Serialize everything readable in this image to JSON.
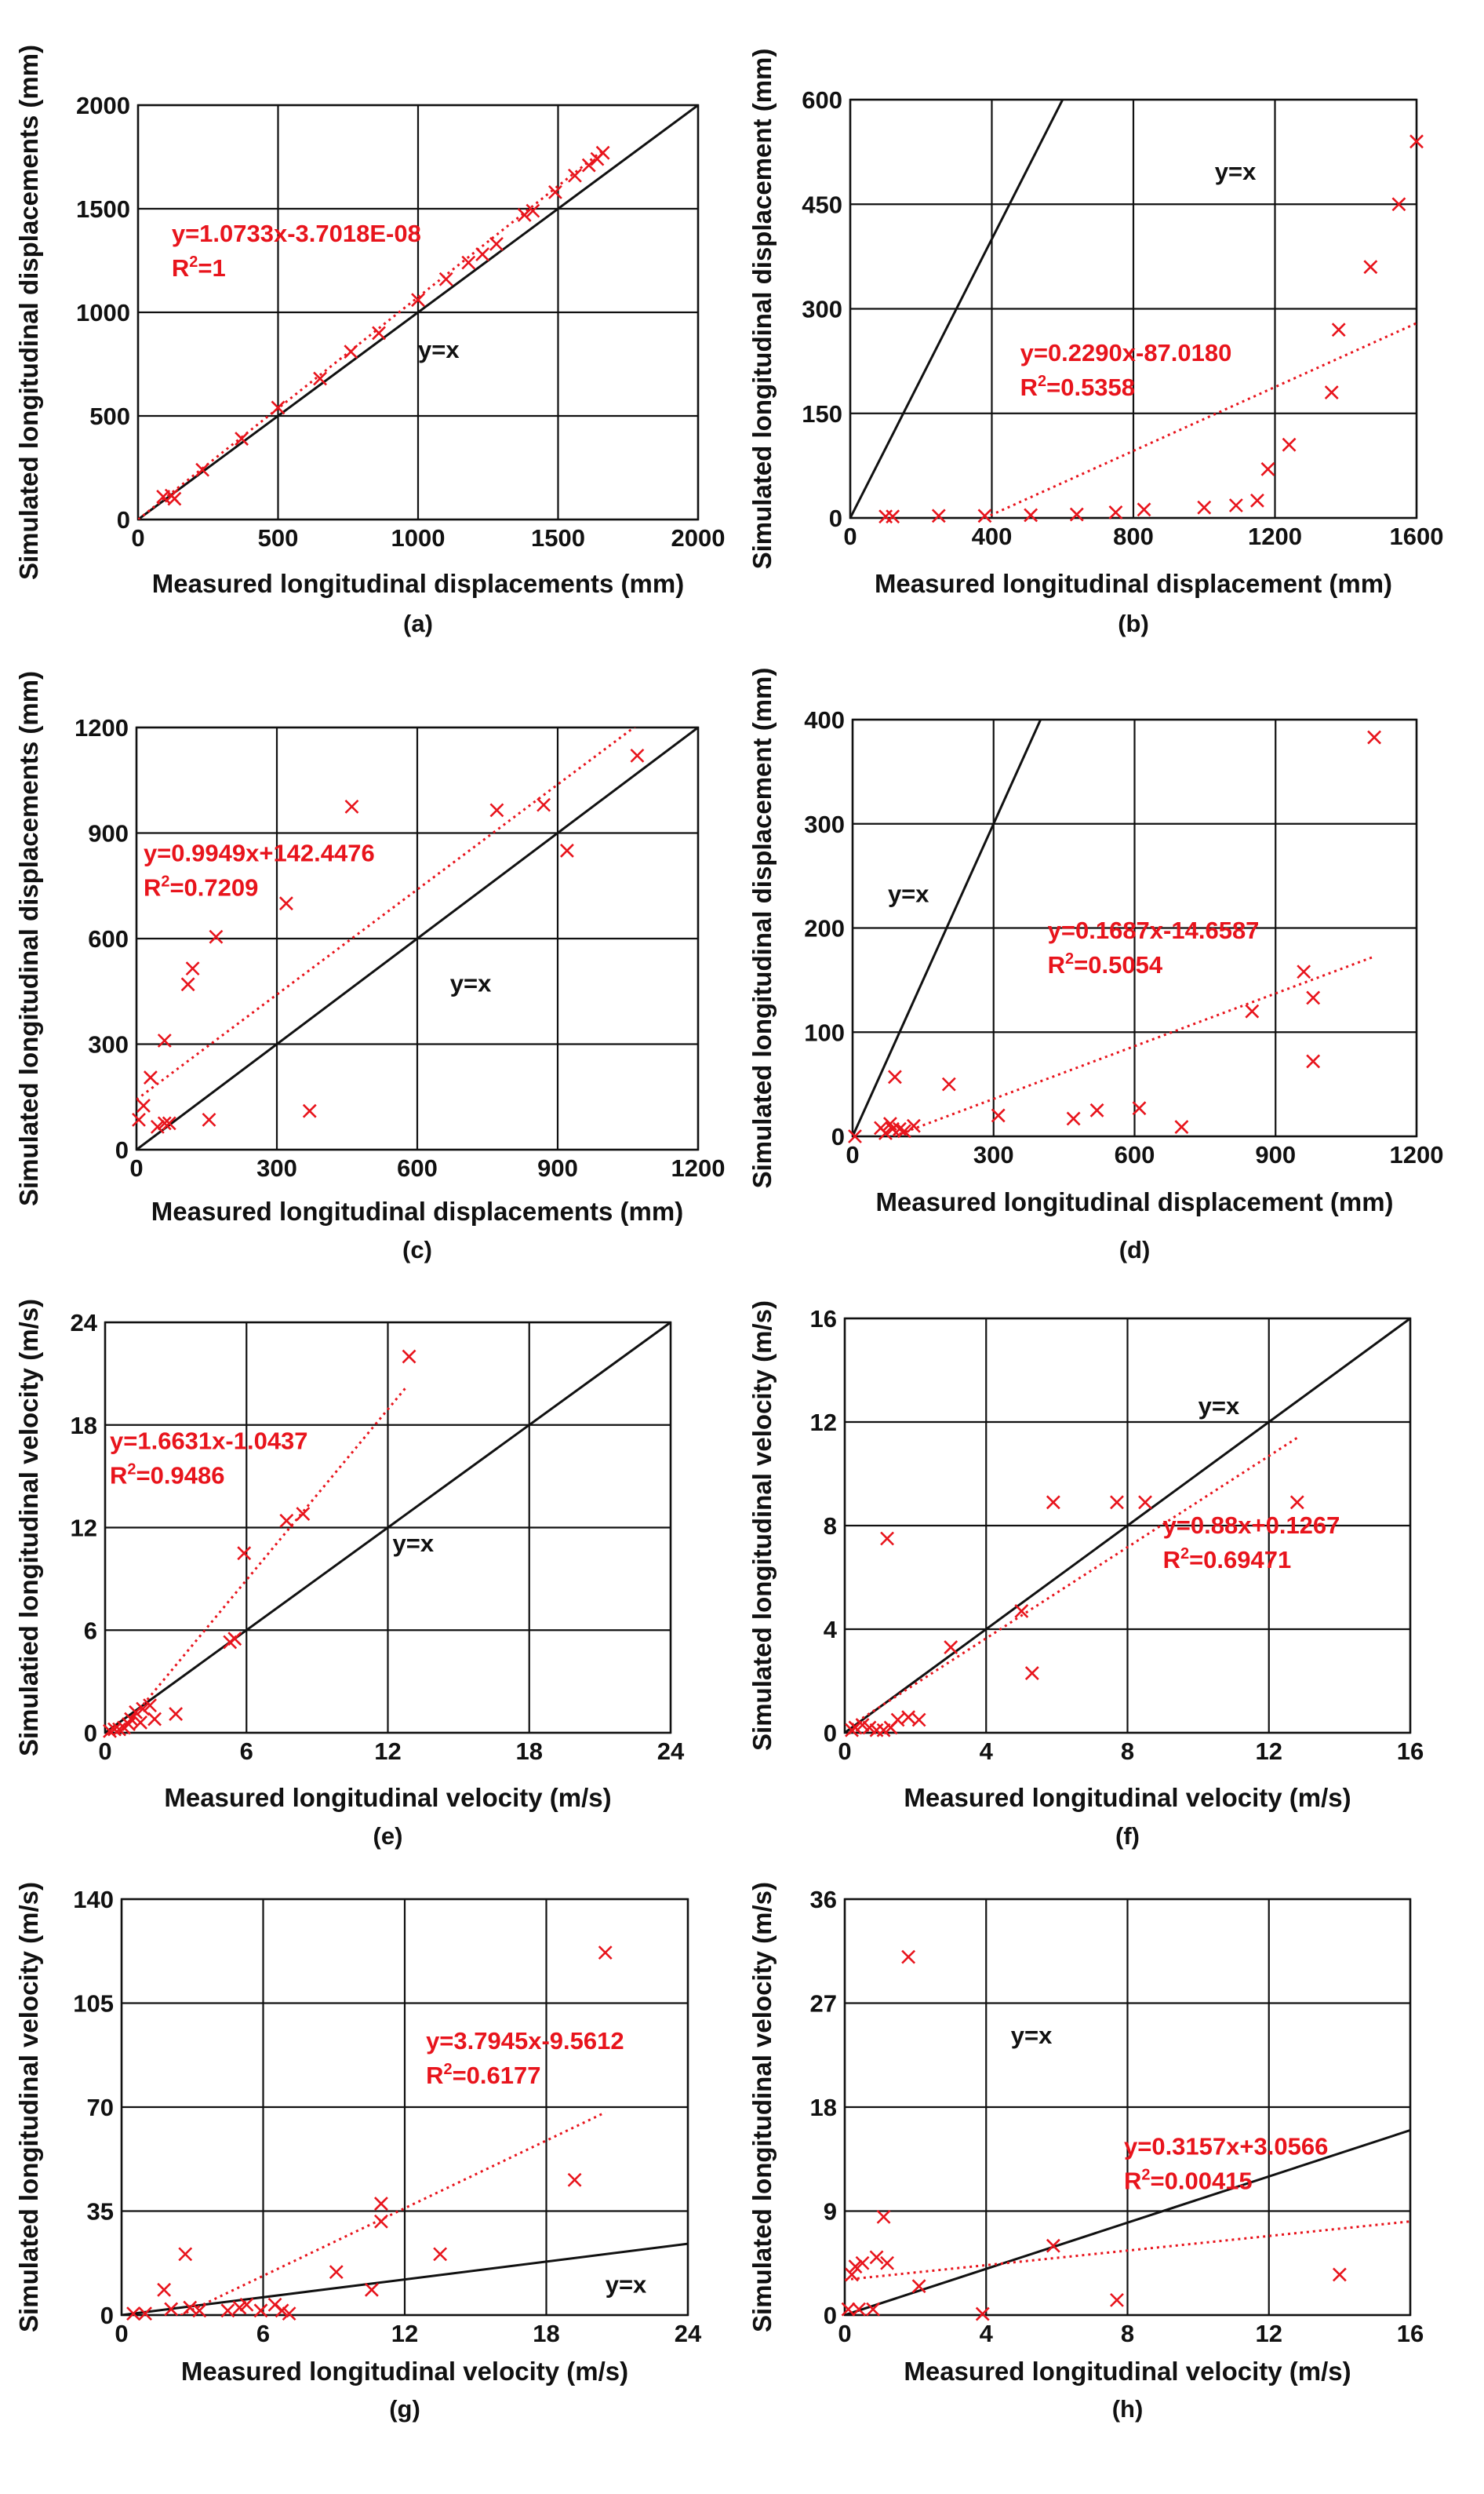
{
  "chart_data": [
    {
      "id": "a",
      "panel_label": "(a)",
      "type": "scatter",
      "xlabel": "Measured longitudinal displacements (mm)",
      "ylabel": "Simulated longitudinal displacements (mm)",
      "xlim": [
        0,
        2000
      ],
      "ylim": [
        0,
        2000
      ],
      "xticks": [
        0,
        500,
        1000,
        1500,
        2000
      ],
      "yticks": [
        0,
        500,
        1000,
        1500,
        2000
      ],
      "grid": true,
      "identity_label": "y=x",
      "identity_label_at": [
        1000,
        780
      ],
      "fit": {
        "slope": 1.0733,
        "intercept": -3.7018e-08,
        "x_range": [
          0,
          1660
        ]
      },
      "fit_equation": "y=1.0733x-3.7018E-08",
      "r2_prefix": "R",
      "r2_value": "=1",
      "equation_at": [
        120,
        1340
      ],
      "points": [
        [
          90,
          110
        ],
        [
          120,
          115
        ],
        [
          130,
          100
        ],
        [
          230,
          240
        ],
        [
          370,
          390
        ],
        [
          500,
          540
        ],
        [
          650,
          680
        ],
        [
          760,
          810
        ],
        [
          860,
          900
        ],
        [
          1000,
          1060
        ],
        [
          1100,
          1160
        ],
        [
          1180,
          1240
        ],
        [
          1230,
          1280
        ],
        [
          1280,
          1330
        ],
        [
          1380,
          1470
        ],
        [
          1410,
          1490
        ],
        [
          1490,
          1580
        ],
        [
          1560,
          1660
        ],
        [
          1610,
          1710
        ],
        [
          1640,
          1740
        ],
        [
          1660,
          1770
        ]
      ]
    },
    {
      "id": "b",
      "panel_label": "(b)",
      "type": "scatter",
      "xlabel": "Measured longitudinal displacement (mm)",
      "ylabel": "Simulated longitudinal displacement (mm)",
      "xlim": [
        0,
        1600
      ],
      "ylim": [
        0,
        600
      ],
      "xticks": [
        0,
        400,
        800,
        1200,
        1600
      ],
      "yticks": [
        0,
        150,
        300,
        450,
        600
      ],
      "grid": true,
      "identity_label": "y=x",
      "identity_label_at": [
        1030,
        485
      ],
      "fit": {
        "slope": 0.229,
        "intercept": -87.018,
        "x_range": [
          380,
          1600
        ]
      },
      "fit_equation": "y=0.2290x-87.0180",
      "r2_prefix": "R",
      "r2_value": "=0.5358",
      "equation_at": [
        480,
        225
      ],
      "points": [
        [
          100,
          2
        ],
        [
          120,
          2
        ],
        [
          250,
          3
        ],
        [
          380,
          3
        ],
        [
          510,
          4
        ],
        [
          640,
          5
        ],
        [
          750,
          8
        ],
        [
          830,
          12
        ],
        [
          1000,
          15
        ],
        [
          1090,
          18
        ],
        [
          1150,
          25
        ],
        [
          1180,
          70
        ],
        [
          1240,
          105
        ],
        [
          1360,
          180
        ],
        [
          1380,
          270
        ],
        [
          1470,
          360
        ],
        [
          1550,
          450
        ],
        [
          1600,
          540
        ]
      ]
    },
    {
      "id": "c",
      "panel_label": "(c)",
      "type": "scatter",
      "xlabel": "Measured longitudinal displacements (mm)",
      "ylabel": "Simulated longitudinal displacements (mm)",
      "xlim": [
        0,
        1200
      ],
      "ylim": [
        0,
        1200
      ],
      "xticks": [
        0,
        300,
        600,
        900,
        1200
      ],
      "yticks": [
        0,
        300,
        600,
        900,
        1200
      ],
      "grid": true,
      "identity_label": "y=x",
      "identity_label_at": [
        670,
        450
      ],
      "fit": {
        "slope": 0.9949,
        "intercept": 142.4476,
        "x_range": [
          0,
          1070
        ]
      },
      "fit_equation": "y=0.9949x+142.4476",
      "r2_prefix": "R",
      "r2_value": "=0.7209",
      "equation_at": [
        15,
        820
      ],
      "points": [
        [
          5,
          85
        ],
        [
          15,
          125
        ],
        [
          30,
          205
        ],
        [
          45,
          65
        ],
        [
          60,
          310
        ],
        [
          60,
          75
        ],
        [
          70,
          75
        ],
        [
          110,
          470
        ],
        [
          120,
          515
        ],
        [
          155,
          85
        ],
        [
          170,
          605
        ],
        [
          320,
          700
        ],
        [
          370,
          110
        ],
        [
          460,
          975
        ],
        [
          770,
          965
        ],
        [
          870,
          980
        ],
        [
          920,
          850
        ],
        [
          1070,
          1120
        ]
      ]
    },
    {
      "id": "d",
      "panel_label": "(d)",
      "type": "scatter",
      "xlabel": "Measured longitudinal displacement (mm)",
      "ylabel": "Simulated longitudinal displacement (mm)",
      "xlim": [
        0,
        1200
      ],
      "ylim": [
        0,
        400
      ],
      "xticks": [
        0,
        300,
        600,
        900,
        1200
      ],
      "yticks": [
        0,
        100,
        200,
        300,
        400
      ],
      "grid": true,
      "identity_label": "y=x",
      "identity_label_at": [
        75,
        225
      ],
      "fit": {
        "slope": 0.1687,
        "intercept": -14.6587,
        "x_range": [
          87,
          1110
        ]
      },
      "fit_equation": "y=0.1687x-14.6587",
      "r2_prefix": "R",
      "r2_value": "=0.5054",
      "equation_at": [
        415,
        190
      ],
      "points": [
        [
          5,
          0
        ],
        [
          60,
          8
        ],
        [
          70,
          3
        ],
        [
          80,
          12
        ],
        [
          85,
          7
        ],
        [
          90,
          57
        ],
        [
          100,
          7
        ],
        [
          110,
          5
        ],
        [
          130,
          10
        ],
        [
          205,
          50
        ],
        [
          310,
          20
        ],
        [
          470,
          17
        ],
        [
          520,
          25
        ],
        [
          610,
          27
        ],
        [
          700,
          9
        ],
        [
          850,
          120
        ],
        [
          960,
          158
        ],
        [
          980,
          133
        ],
        [
          980,
          72
        ],
        [
          1110,
          383
        ]
      ]
    },
    {
      "id": "e",
      "panel_label": "(e)",
      "type": "scatter",
      "xlabel": "Measured longitudinal velocity (m/s)",
      "ylabel": "Simulatied longitudinal velocity (m/s)",
      "xlim": [
        0,
        24
      ],
      "ylim": [
        0,
        24
      ],
      "xticks": [
        0,
        6,
        12,
        18,
        24
      ],
      "yticks": [
        0,
        6,
        12,
        18,
        24
      ],
      "grid": true,
      "identity_label": "y=x",
      "identity_label_at": [
        12.2,
        10.6
      ],
      "fit": {
        "slope": 1.6631,
        "intercept": -1.0437,
        "x_range": [
          0.6,
          12.8
        ]
      },
      "fit_equation": "y=1.6631x-1.0437",
      "r2_prefix": "R",
      "r2_value": "=0.9486",
      "equation_at": [
        0.2,
        16.6
      ],
      "points": [
        [
          0.2,
          0.1
        ],
        [
          0.4,
          0.2
        ],
        [
          0.6,
          0.2
        ],
        [
          0.8,
          0.3
        ],
        [
          1.0,
          0.5
        ],
        [
          1.1,
          0.8
        ],
        [
          1.3,
          1.2
        ],
        [
          1.5,
          0.6
        ],
        [
          1.6,
          1.4
        ],
        [
          1.9,
          1.6
        ],
        [
          2.1,
          0.8
        ],
        [
          3.0,
          1.1
        ],
        [
          5.3,
          5.3
        ],
        [
          5.5,
          5.5
        ],
        [
          5.9,
          10.5
        ],
        [
          7.7,
          12.4
        ],
        [
          8.4,
          12.8
        ],
        [
          12.9,
          22.0
        ]
      ]
    },
    {
      "id": "f",
      "panel_label": "(f)",
      "type": "scatter",
      "xlabel": "Measured longitudinal velocity (m/s)",
      "ylabel": "Simulated longitudinal velocity (m/s)",
      "xlim": [
        0,
        16
      ],
      "ylim": [
        0,
        16
      ],
      "xticks": [
        0,
        4,
        8,
        12,
        16
      ],
      "yticks": [
        0,
        4,
        8,
        12,
        16
      ],
      "grid": true,
      "identity_label": "y=x",
      "identity_label_at": [
        10.0,
        12.3
      ],
      "fit": {
        "slope": 0.88,
        "intercept": 0.1267,
        "x_range": [
          0.2,
          12.8
        ]
      },
      "fit_equation": "y=0.88x+0.1267",
      "r2_prefix": "R",
      "r2_value": "=0.69471",
      "equation_at": [
        9.0,
        7.7
      ],
      "points": [
        [
          0.2,
          0.1
        ],
        [
          0.3,
          0.2
        ],
        [
          0.5,
          0.3
        ],
        [
          0.7,
          0.2
        ],
        [
          0.9,
          0.1
        ],
        [
          1.1,
          0.1
        ],
        [
          1.2,
          7.5
        ],
        [
          1.3,
          0.2
        ],
        [
          1.5,
          0.5
        ],
        [
          1.8,
          0.6
        ],
        [
          2.1,
          0.5
        ],
        [
          3.0,
          3.3
        ],
        [
          5.0,
          4.7
        ],
        [
          5.3,
          2.3
        ],
        [
          5.9,
          8.9
        ],
        [
          7.7,
          8.9
        ],
        [
          8.5,
          8.9
        ],
        [
          12.8,
          8.9
        ]
      ]
    },
    {
      "id": "g",
      "panel_label": "(g)",
      "type": "scatter",
      "xlabel": "Measured longitudinal velocity (m/s)",
      "ylabel": "Simulated longitudinal velocity (m/s)",
      "xlim": [
        0,
        24
      ],
      "ylim": [
        0,
        140
      ],
      "xticks": [
        0,
        6,
        12,
        18,
        24
      ],
      "yticks": [
        0,
        35,
        70,
        105,
        140
      ],
      "grid": true,
      "identity_label": "y=x",
      "identity_label_at": [
        20.5,
        7.5
      ],
      "fit": {
        "slope": 3.7945,
        "intercept": -9.5612,
        "x_range": [
          2.5,
          20.5
        ]
      },
      "fit_equation": "y=3.7945x-9.5612",
      "r2_prefix": "R",
      "r2_value": "=0.6177",
      "equation_at": [
        12.9,
        89.5
      ],
      "points": [
        [
          0.5,
          0.5
        ],
        [
          1.0,
          0.5
        ],
        [
          1.8,
          8.5
        ],
        [
          2.1,
          2
        ],
        [
          2.7,
          20.5
        ],
        [
          2.9,
          2.5
        ],
        [
          3.3,
          1.5
        ],
        [
          4.5,
          1.5
        ],
        [
          5.0,
          2.5
        ],
        [
          5.3,
          3.5
        ],
        [
          5.9,
          1.5
        ],
        [
          6.5,
          3.5
        ],
        [
          6.8,
          1.5
        ],
        [
          7.1,
          0.5
        ],
        [
          9.1,
          14.5
        ],
        [
          10.6,
          8.5
        ],
        [
          11.0,
          31.5
        ],
        [
          11.0,
          37.5
        ],
        [
          13.5,
          20.5
        ],
        [
          19.2,
          45.5
        ],
        [
          20.5,
          122
        ]
      ]
    },
    {
      "id": "h",
      "panel_label": "(h)",
      "type": "scatter",
      "xlabel": "Measured longitudinal velocity (m/s)",
      "ylabel": "Simulated longitudinal velocity (m/s)",
      "xlim": [
        0,
        16
      ],
      "ylim": [
        0,
        36
      ],
      "xticks": [
        0,
        4,
        8,
        12,
        16
      ],
      "yticks": [
        0,
        9,
        18,
        27,
        36
      ],
      "grid": true,
      "identity_label": "y=x",
      "identity_label_at": [
        4.7,
        23.5
      ],
      "fit": {
        "slope": 0.3157,
        "intercept": 3.0566,
        "x_range": [
          0,
          16
        ]
      },
      "fit_equation": "y=0.3157x+3.0566",
      "r2_prefix": "R",
      "r2_value": "=0.00415",
      "equation_at": [
        7.9,
        13.9
      ],
      "points": [
        [
          0.1,
          0.5
        ],
        [
          0.2,
          3.5
        ],
        [
          0.3,
          4.2
        ],
        [
          0.4,
          0.5
        ],
        [
          0.5,
          4.5
        ],
        [
          0.8,
          0.5
        ],
        [
          0.9,
          5.0
        ],
        [
          1.1,
          8.5
        ],
        [
          1.2,
          4.5
        ],
        [
          1.8,
          31
        ],
        [
          2.1,
          2.5
        ],
        [
          3.9,
          0.1
        ],
        [
          5.9,
          6.0
        ],
        [
          7.7,
          1.3
        ],
        [
          14.0,
          3.5
        ]
      ]
    }
  ]
}
